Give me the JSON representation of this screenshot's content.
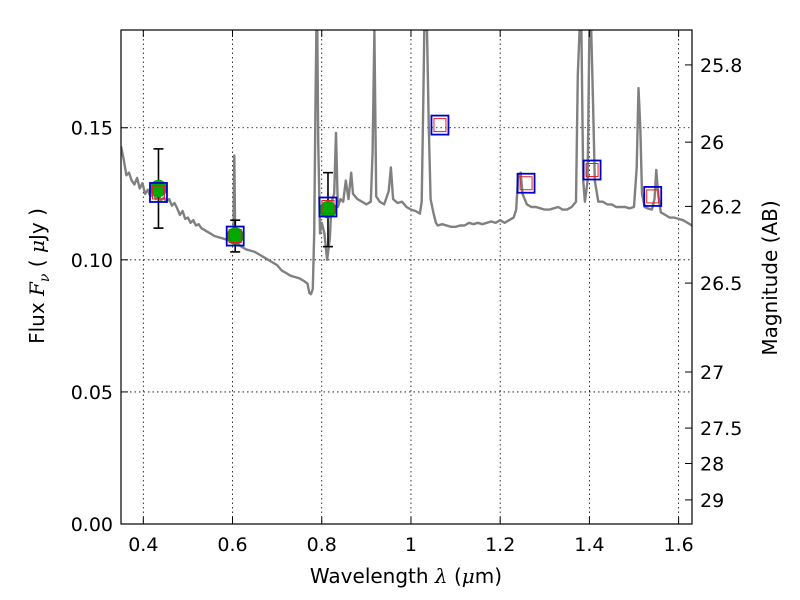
{
  "chart_data": {
    "type": "scatter",
    "title": "",
    "xlabel": {
      "prefix": "Wavelength  ",
      "symbol": "λ",
      "mid": " (",
      "unit_symbol": "μ",
      "suffix": "m)"
    },
    "ylabel": {
      "prefix": "Flux  ",
      "symbol": "F",
      "subscript": "ν",
      "mid": "  (  ",
      "unit_symbol": "μ",
      "suffix": "Jy )"
    },
    "y2label": "Magnitude (AB)",
    "xlim": [
      0.35,
      1.63
    ],
    "ylim": [
      0.0,
      0.187
    ],
    "xticks": [
      {
        "value": 0.4,
        "label": "0.4"
      },
      {
        "value": 0.6,
        "label": "0.6"
      },
      {
        "value": 0.8,
        "label": "0.8"
      },
      {
        "value": 1.0,
        "label": "1"
      },
      {
        "value": 1.2,
        "label": "1.2"
      },
      {
        "value": 1.4,
        "label": "1.4"
      },
      {
        "value": 1.6,
        "label": "1.6"
      }
    ],
    "yticks": [
      {
        "value": 0.0,
        "label": "0.00"
      },
      {
        "value": 0.05,
        "label": "0.05"
      },
      {
        "value": 0.1,
        "label": "0.10"
      },
      {
        "value": 0.15,
        "label": "0.15"
      }
    ],
    "y2ticks": [
      {
        "value": 25.8,
        "label": "25.8"
      },
      {
        "value": 26.0,
        "label": "26"
      },
      {
        "value": 26.2,
        "label": "26.2"
      },
      {
        "value": 26.5,
        "label": "26.5"
      },
      {
        "value": 27.0,
        "label": "27"
      },
      {
        "value": 27.5,
        "label": "27.5"
      },
      {
        "value": 28.0,
        "label": "28"
      },
      {
        "value": 29.0,
        "label": "29"
      }
    ],
    "grid": true,
    "colors": {
      "model": "#808080",
      "observed": "#00aa00",
      "model_box": "#0000cc",
      "model_box_inner": "#dd2222",
      "errorbar": "#000000"
    },
    "model_spectrum": [
      [
        0.35,
        0.143
      ],
      [
        0.356,
        0.138
      ],
      [
        0.362,
        0.132
      ],
      [
        0.368,
        0.133
      ],
      [
        0.374,
        0.13
      ],
      [
        0.38,
        0.1285
      ],
      [
        0.386,
        0.131
      ],
      [
        0.392,
        0.127
      ],
      [
        0.398,
        0.129
      ],
      [
        0.404,
        0.125
      ],
      [
        0.41,
        0.1265
      ],
      [
        0.416,
        0.124
      ],
      [
        0.422,
        0.1255
      ],
      [
        0.428,
        0.123
      ],
      [
        0.434,
        0.1245
      ],
      [
        0.44,
        0.1225
      ],
      [
        0.446,
        0.1235
      ],
      [
        0.452,
        0.122
      ],
      [
        0.458,
        0.123
      ],
      [
        0.464,
        0.1205
      ],
      [
        0.47,
        0.1215
      ],
      [
        0.476,
        0.1195
      ],
      [
        0.482,
        0.117
      ],
      [
        0.488,
        0.1185
      ],
      [
        0.494,
        0.1155
      ],
      [
        0.5,
        0.116
      ],
      [
        0.506,
        0.114
      ],
      [
        0.512,
        0.115
      ],
      [
        0.518,
        0.113
      ],
      [
        0.524,
        0.1135
      ],
      [
        0.53,
        0.112
      ],
      [
        0.54,
        0.111
      ],
      [
        0.55,
        0.11
      ],
      [
        0.56,
        0.109
      ],
      [
        0.57,
        0.1085
      ],
      [
        0.58,
        0.108
      ],
      [
        0.59,
        0.1075
      ],
      [
        0.598,
        0.107
      ],
      [
        0.602,
        0.108
      ],
      [
        0.604,
        0.1395
      ],
      [
        0.606,
        0.109
      ],
      [
        0.612,
        0.106
      ],
      [
        0.62,
        0.105
      ],
      [
        0.63,
        0.104
      ],
      [
        0.64,
        0.1035
      ],
      [
        0.65,
        0.103
      ],
      [
        0.66,
        0.102
      ],
      [
        0.67,
        0.101
      ],
      [
        0.68,
        0.1
      ],
      [
        0.69,
        0.099
      ],
      [
        0.7,
        0.098
      ],
      [
        0.71,
        0.096
      ],
      [
        0.72,
        0.095
      ],
      [
        0.73,
        0.094
      ],
      [
        0.74,
        0.0935
      ],
      [
        0.75,
        0.093
      ],
      [
        0.76,
        0.092
      ],
      [
        0.768,
        0.091
      ],
      [
        0.772,
        0.0875
      ],
      [
        0.776,
        0.087
      ],
      [
        0.78,
        0.089
      ],
      [
        0.783,
        0.11
      ],
      [
        0.786,
        0.16
      ],
      [
        0.788,
        0.187
      ],
      [
        0.79,
        0.187
      ],
      [
        0.792,
        0.145
      ],
      [
        0.796,
        0.11
      ],
      [
        0.8,
        0.114
      ],
      [
        0.806,
        0.11
      ],
      [
        0.812,
        0.1
      ],
      [
        0.818,
        0.108
      ],
      [
        0.822,
        0.122
      ],
      [
        0.828,
        0.125
      ],
      [
        0.832,
        0.148
      ],
      [
        0.836,
        0.12
      ],
      [
        0.842,
        0.123
      ],
      [
        0.848,
        0.122
      ],
      [
        0.854,
        0.13
      ],
      [
        0.86,
        0.123
      ],
      [
        0.866,
        0.133
      ],
      [
        0.87,
        0.125
      ],
      [
        0.88,
        0.123
      ],
      [
        0.89,
        0.122
      ],
      [
        0.9,
        0.121
      ],
      [
        0.91,
        0.122
      ],
      [
        0.914,
        0.141
      ],
      [
        0.918,
        0.187
      ],
      [
        0.922,
        0.124
      ],
      [
        0.93,
        0.122
      ],
      [
        0.94,
        0.121
      ],
      [
        0.95,
        0.126
      ],
      [
        0.955,
        0.135
      ],
      [
        0.96,
        0.123
      ],
      [
        0.97,
        0.1215
      ],
      [
        0.98,
        0.122
      ],
      [
        0.99,
        0.12
      ],
      [
        1.0,
        0.119
      ],
      [
        1.01,
        0.1185
      ],
      [
        1.02,
        0.1175
      ],
      [
        1.024,
        0.122
      ],
      [
        1.028,
        0.165
      ],
      [
        1.03,
        0.187
      ],
      [
        1.036,
        0.187
      ],
      [
        1.04,
        0.15
      ],
      [
        1.044,
        0.123
      ],
      [
        1.05,
        0.118
      ],
      [
        1.056,
        0.114
      ],
      [
        1.06,
        0.113
      ],
      [
        1.07,
        0.1135
      ],
      [
        1.08,
        0.113
      ],
      [
        1.09,
        0.1125
      ],
      [
        1.1,
        0.1125
      ],
      [
        1.11,
        0.113
      ],
      [
        1.12,
        0.113
      ],
      [
        1.13,
        0.114
      ],
      [
        1.14,
        0.1135
      ],
      [
        1.15,
        0.114
      ],
      [
        1.16,
        0.1135
      ],
      [
        1.17,
        0.114
      ],
      [
        1.18,
        0.1145
      ],
      [
        1.19,
        0.114
      ],
      [
        1.2,
        0.115
      ],
      [
        1.21,
        0.114
      ],
      [
        1.22,
        0.115
      ],
      [
        1.23,
        0.116
      ],
      [
        1.236,
        0.119
      ],
      [
        1.24,
        0.131
      ],
      [
        1.246,
        0.133
      ],
      [
        1.25,
        0.125
      ],
      [
        1.26,
        0.121
      ],
      [
        1.27,
        0.12
      ],
      [
        1.28,
        0.12
      ],
      [
        1.29,
        0.1195
      ],
      [
        1.3,
        0.119
      ],
      [
        1.31,
        0.119
      ],
      [
        1.32,
        0.1195
      ],
      [
        1.33,
        0.12
      ],
      [
        1.34,
        0.119
      ],
      [
        1.35,
        0.119
      ],
      [
        1.36,
        0.12
      ],
      [
        1.37,
        0.122
      ],
      [
        1.374,
        0.17
      ],
      [
        1.378,
        0.187
      ],
      [
        1.382,
        0.187
      ],
      [
        1.386,
        0.13
      ],
      [
        1.39,
        0.122
      ],
      [
        1.396,
        0.13
      ],
      [
        1.4,
        0.187
      ],
      [
        1.404,
        0.187
      ],
      [
        1.408,
        0.16
      ],
      [
        1.412,
        0.13
      ],
      [
        1.42,
        0.122
      ],
      [
        1.43,
        0.122
      ],
      [
        1.44,
        0.121
      ],
      [
        1.45,
        0.121
      ],
      [
        1.46,
        0.12
      ],
      [
        1.47,
        0.12
      ],
      [
        1.48,
        0.12
      ],
      [
        1.49,
        0.1195
      ],
      [
        1.5,
        0.12
      ],
      [
        1.506,
        0.135
      ],
      [
        1.51,
        0.165
      ],
      [
        1.514,
        0.15
      ],
      [
        1.518,
        0.125
      ],
      [
        1.524,
        0.12
      ],
      [
        1.53,
        0.1195
      ],
      [
        1.54,
        0.119
      ],
      [
        1.546,
        0.123
      ],
      [
        1.55,
        0.134
      ],
      [
        1.554,
        0.125
      ],
      [
        1.56,
        0.118
      ],
      [
        1.57,
        0.117
      ],
      [
        1.58,
        0.116
      ],
      [
        1.59,
        0.116
      ],
      [
        1.6,
        0.1155
      ],
      [
        1.61,
        0.115
      ],
      [
        1.62,
        0.114
      ],
      [
        1.63,
        0.113
      ]
    ],
    "observed": [
      {
        "x": 0.434,
        "y": 0.127,
        "err": 0.015
      },
      {
        "x": 0.606,
        "y": 0.109,
        "err": 0.006
      },
      {
        "x": 0.814,
        "y": 0.119,
        "err": 0.014
      }
    ],
    "model_points": [
      {
        "x": 0.434,
        "y": 0.1255
      },
      {
        "x": 0.606,
        "y": 0.109
      },
      {
        "x": 0.814,
        "y": 0.12
      },
      {
        "x": 1.065,
        "y": 0.151
      },
      {
        "x": 1.258,
        "y": 0.129
      },
      {
        "x": 1.406,
        "y": 0.134
      },
      {
        "x": 1.542,
        "y": 0.124
      }
    ]
  }
}
